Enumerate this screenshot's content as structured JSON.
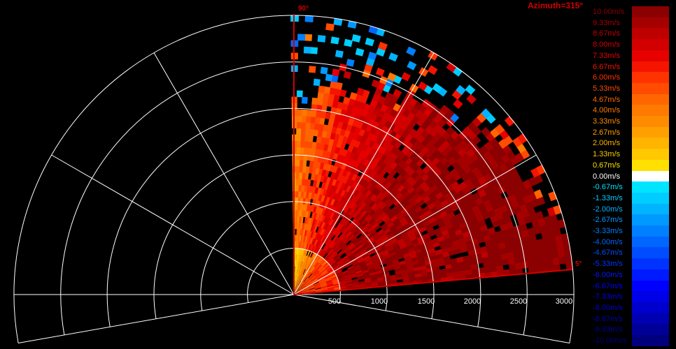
{
  "header": {
    "azimuth": "Azimuth=315°"
  },
  "elevation_labels": {
    "top": "90°",
    "right": "5°"
  },
  "range_labels": [
    "500",
    "1000",
    "1500",
    "2000",
    "2500",
    "3000"
  ],
  "range_values_m": [
    500,
    1000,
    1500,
    2000,
    2500,
    3000
  ],
  "range_max_m": 3000,
  "colorbar": {
    "labels": [
      "10.00m/s",
      "9.33m/s",
      "8.67m/s",
      "8.00m/s",
      "7.33m/s",
      "6.67m/s",
      "6.00m/s",
      "5.33m/s",
      "4.67m/s",
      "4.00m/s",
      "3.33m/s",
      "2.67m/s",
      "2.00m/s",
      "1.33m/s",
      "0.67m/s",
      "0.00m/s",
      "-0.67m/s",
      "-1.33m/s",
      "-2.00m/s",
      "-2.67m/s",
      "-3.33m/s",
      "-4.00m/s",
      "-4.67m/s",
      "-5.33m/s",
      "-6.00m/s",
      "-6.67m/s",
      "-7.33m/s",
      "-8.00m/s",
      "-8.67m/s",
      "-9.33m/s",
      "-10.00m/s"
    ],
    "colors": [
      "#8b0000",
      "#a50000",
      "#bf0000",
      "#d20000",
      "#e60000",
      "#f51400",
      "#ff3300",
      "#ff4c00",
      "#ff6600",
      "#ff7a00",
      "#ff8c00",
      "#ffa000",
      "#ffb400",
      "#ffc800",
      "#ffe000",
      "#ffffff",
      "#00e5ff",
      "#00cdff",
      "#00b4ff",
      "#0099ff",
      "#0080ff",
      "#0066ff",
      "#004dff",
      "#0033ff",
      "#001aff",
      "#0000ff",
      "#0000e6",
      "#0000cc",
      "#0000b0",
      "#000096",
      "#00007d"
    ],
    "label_colors": [
      "#8b0000",
      "#a50000",
      "#bf0000",
      "#d20000",
      "#e60000",
      "#f51400",
      "#ff3300",
      "#ff4c00",
      "#ff6600",
      "#ff7a00",
      "#ff8c00",
      "#ffa000",
      "#ffb400",
      "#ffc800",
      "#ffe000",
      "#ffffff",
      "#00e5ff",
      "#00cdff",
      "#00b4ff",
      "#0099ff",
      "#0080ff",
      "#0066ff",
      "#004dff",
      "#0033ff",
      "#001aff",
      "#0000ff",
      "#0000e6",
      "#0000cc",
      "#0000b0",
      "#000096",
      "#00007d"
    ]
  },
  "colors": {
    "accent": "#d20000",
    "grid": "#ffffff",
    "background": "#000000"
  }
}
